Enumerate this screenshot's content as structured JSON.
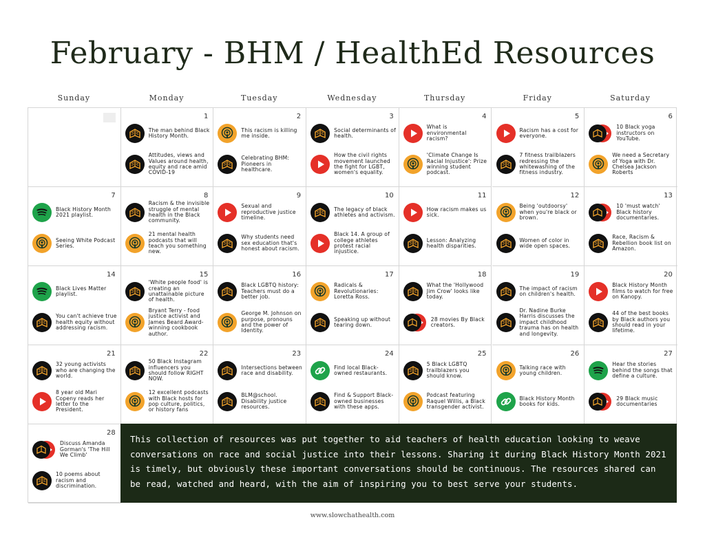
{
  "title": "February - BHM / HealthEd Resources",
  "days": [
    "Sunday",
    "Monday",
    "Tuesday",
    "Wednesday",
    "Thursday",
    "Friday",
    "Saturday"
  ],
  "cells": [
    {
      "num": "",
      "items": []
    },
    {
      "num": "1",
      "items": [
        {
          "icon": "book",
          "text": "The man behind Black History Month."
        },
        {
          "icon": "book",
          "text": "Attitudes, views and Values around health, equity and race amid COVID-19"
        }
      ]
    },
    {
      "num": "2",
      "items": [
        {
          "icon": "podcast",
          "text": "This racism is killing me inside."
        },
        {
          "icon": "book",
          "text": "Celebrating BHM: Pioneers in healthcare."
        }
      ]
    },
    {
      "num": "3",
      "items": [
        {
          "icon": "book",
          "text": "Social determinants of health."
        },
        {
          "icon": "video",
          "text": "How the civil rights movement launched the fight for LGBT, women's equality."
        }
      ]
    },
    {
      "num": "4",
      "items": [
        {
          "icon": "video",
          "text": "What is environmental racism?"
        },
        {
          "icon": "podcast",
          "text": "'Climate Change Is Racial Injustice': Prize winning student podcast."
        }
      ]
    },
    {
      "num": "5",
      "items": [
        {
          "icon": "video",
          "text": "Racism has a cost for everyone."
        },
        {
          "icon": "book",
          "text": "7 fitness trailblazers redressing the whitewashing of the fitness industry."
        }
      ]
    },
    {
      "num": "6",
      "items": [
        {
          "icon": "video-book",
          "text": "10 Black yoga instructors on YouTube."
        },
        {
          "icon": "podcast",
          "text": "We need a Secretary of Yoga with Dr. Chelsea Jackson Roberts"
        }
      ]
    },
    {
      "num": "7",
      "items": [
        {
          "icon": "spotify",
          "text": "Black History Month 2021 playlist."
        },
        {
          "icon": "podcast",
          "text": "Seeing White Podcast Series."
        }
      ]
    },
    {
      "num": "8",
      "items": [
        {
          "icon": "book",
          "text": "Racism & the invisible struggle of mental health in the Black community."
        },
        {
          "icon": "podcast",
          "text": "21 mental health podcasts that will teach you something new."
        }
      ]
    },
    {
      "num": "9",
      "items": [
        {
          "icon": "video",
          "text": "Sexual and reproductive justice timeline."
        },
        {
          "icon": "book",
          "text": "Why students need sex education that's honest about racism."
        }
      ]
    },
    {
      "num": "10",
      "items": [
        {
          "icon": "book",
          "text": "The legacy of black athletes and activism."
        },
        {
          "icon": "video",
          "text": "Black 14. A group of college athletes protest racial injustice."
        }
      ]
    },
    {
      "num": "11",
      "items": [
        {
          "icon": "video",
          "text": "How racism makes us sick."
        },
        {
          "icon": "book",
          "text": "Lesson: Analyzing health disparities."
        }
      ]
    },
    {
      "num": "12",
      "items": [
        {
          "icon": "podcast",
          "text": "Being 'outdoorsy' when you're black or brown."
        },
        {
          "icon": "book",
          "text": "Women of color in wide open spaces."
        }
      ]
    },
    {
      "num": "13",
      "items": [
        {
          "icon": "video-book",
          "text": "10 'must watch' Black history documentaries."
        },
        {
          "icon": "book",
          "text": "Race, Racism & Rebellion book list on Amazon."
        }
      ]
    },
    {
      "num": "14",
      "items": [
        {
          "icon": "spotify",
          "text": "Black Lives Matter playlist."
        },
        {
          "icon": "book",
          "text": "You can't achieve true health equity without addressing racism."
        }
      ]
    },
    {
      "num": "15",
      "items": [
        {
          "icon": "book",
          "text": "'White people food' is creating an unattainable picture of health."
        },
        {
          "icon": "podcast",
          "text": "Bryant Terry - food justice activist and James Beard Award-winning cookbook author."
        }
      ]
    },
    {
      "num": "16",
      "items": [
        {
          "icon": "book",
          "text": "Black LGBTQ history: Teachers must do a better job."
        },
        {
          "icon": "podcast",
          "text": "George M. Johnson on purpose, pronouns and the power of Identity."
        }
      ]
    },
    {
      "num": "17",
      "items": [
        {
          "icon": "podcast",
          "text": "Radicals & Revolutionaries: Loretta Ross."
        },
        {
          "icon": "book",
          "text": "Speaking up without tearing down."
        }
      ]
    },
    {
      "num": "18",
      "items": [
        {
          "icon": "book",
          "text": "What the 'Hollywood Jim Crow' looks like today."
        },
        {
          "icon": "book-video",
          "text": "28 movies By Black creators."
        }
      ]
    },
    {
      "num": "19",
      "items": [
        {
          "icon": "book",
          "text": "The impact of racism on children's health."
        },
        {
          "icon": "book",
          "text": "Dr. Nadine Burke Harris discusses the impact childhood trauma has on health and longevity."
        }
      ]
    },
    {
      "num": "20",
      "items": [
        {
          "icon": "video",
          "text": "Black History Month films to watch for free on Kanopy."
        },
        {
          "icon": "book",
          "text": "44 of the best books by Black authors you should read in your lifetime."
        }
      ]
    },
    {
      "num": "21",
      "items": [
        {
          "icon": "book",
          "text": "32 young activists who are changing the world."
        },
        {
          "icon": "video",
          "text": "8 year old Mari Copeny reads her letter to the President."
        }
      ]
    },
    {
      "num": "22",
      "items": [
        {
          "icon": "book",
          "text": "50 Black Instagram influencers you should follow RIGHT NOW."
        },
        {
          "icon": "podcast",
          "text": "12 excellent podcasts with Black hosts for pop culture, politics, or history fans"
        }
      ]
    },
    {
      "num": "23",
      "items": [
        {
          "icon": "book",
          "text": "Intersections between race and disability."
        },
        {
          "icon": "book",
          "text": "BLM@school. Disability justice resources."
        }
      ]
    },
    {
      "num": "24",
      "items": [
        {
          "icon": "link",
          "text": "Find local Black-owned restaurants."
        },
        {
          "icon": "book",
          "text": "Find & Support Black-owned businesses with these apps."
        }
      ]
    },
    {
      "num": "25",
      "items": [
        {
          "icon": "book",
          "text": "5 Black LGBTQ trailblazers you should know."
        },
        {
          "icon": "podcast",
          "text": "Podcast featuring Raquel Willis, a Black transgender activist."
        }
      ]
    },
    {
      "num": "26",
      "items": [
        {
          "icon": "podcast",
          "text": "Talking race with young children."
        },
        {
          "icon": "link",
          "text": "Black History Month books for kids."
        }
      ]
    },
    {
      "num": "27",
      "items": [
        {
          "icon": "spotify",
          "text": "Hear the stories behind the songs that define a culture."
        },
        {
          "icon": "book-video",
          "text": "29 Black music documentaries"
        }
      ]
    },
    {
      "num": "28",
      "items": [
        {
          "icon": "video-book",
          "text": "Discuss Amanda Gorman's 'The Hill We Climb'"
        },
        {
          "icon": "book",
          "text": "10 poems about racism and discrimination."
        }
      ]
    }
  ],
  "note": "This collection of resources was put together to aid teachers of health education looking to weave conversations on race and social justice into their lessons. Sharing it during Black History Month 2021 is timely, but obviously these important conversations should be continuous. The resources shared can be read, watched and heard, with the aim of inspiring you to best serve your students.",
  "footer": "www.slowchathealth.com",
  "colors": {
    "dark_green": "#1c2a17",
    "red": "#e53028",
    "orange": "#f2a32b",
    "spotify_green": "#1ea34a",
    "book_icon": "#f2a32b"
  }
}
